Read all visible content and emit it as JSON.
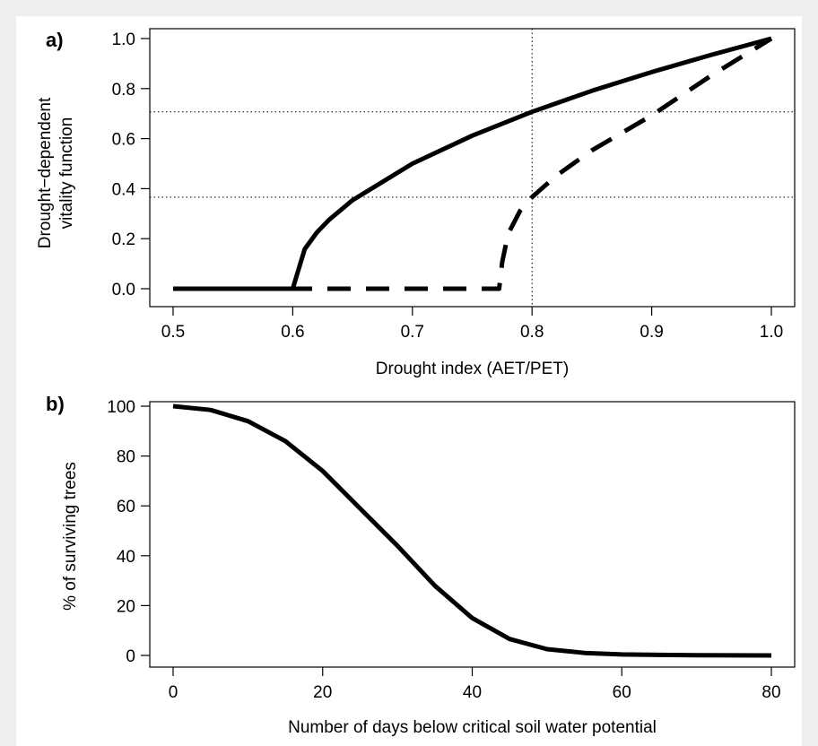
{
  "chart_data": [
    {
      "panel_label": "a)",
      "type": "line",
      "xlabel": "Drought index (AET/PET)",
      "ylabel_lines": [
        "Drought−dependent",
        "vitality function"
      ],
      "xlim": [
        0.5,
        1.0
      ],
      "ylim": [
        0.0,
        1.0
      ],
      "xticks": [
        0.5,
        0.6,
        0.7,
        0.8,
        0.9,
        1.0
      ],
      "xtick_labels": [
        "0.5",
        "0.6",
        "0.7",
        "0.8",
        "0.9",
        "1.0"
      ],
      "yticks": [
        0.0,
        0.2,
        0.4,
        0.6,
        0.8,
        1.0
      ],
      "ytick_labels": [
        "0.0",
        "0.2",
        "0.4",
        "0.6",
        "0.8",
        "1.0"
      ],
      "grid": false,
      "reference_lines": {
        "vertical_x": [
          0.8
        ],
        "horizontal_y": [
          0.707,
          0.366
        ],
        "style": "dotted"
      },
      "series": [
        {
          "style": "solid",
          "color": "#000000",
          "x": [
            0.5,
            0.6,
            0.61,
            0.62,
            0.63,
            0.65,
            0.7,
            0.75,
            0.8,
            0.85,
            0.9,
            0.95,
            1.0
          ],
          "y": [
            0.0,
            0.0,
            0.158,
            0.224,
            0.274,
            0.354,
            0.5,
            0.612,
            0.707,
            0.791,
            0.866,
            0.935,
            1.0
          ]
        },
        {
          "style": "dashed",
          "color": "#000000",
          "x": [
            0.5,
            0.7725,
            0.775,
            0.78,
            0.79,
            0.8,
            0.82,
            0.85,
            0.9,
            0.95,
            1.0
          ],
          "y": [
            0.0,
            0.0,
            0.106,
            0.219,
            0.312,
            0.366,
            0.451,
            0.553,
            0.693,
            0.853,
            1.0
          ]
        }
      ]
    },
    {
      "panel_label": "b)",
      "type": "line",
      "xlabel": "Number of days below critical soil water potential",
      "ylabel": "% of surviving trees",
      "xlim": [
        0,
        80
      ],
      "ylim": [
        0,
        100
      ],
      "xticks": [
        0,
        20,
        40,
        60,
        80
      ],
      "xtick_labels": [
        "0",
        "20",
        "40",
        "60",
        "80"
      ],
      "yticks": [
        0,
        20,
        40,
        60,
        80,
        100
      ],
      "ytick_labels": [
        "0",
        "20",
        "40",
        "60",
        "80",
        "100"
      ],
      "grid": false,
      "series": [
        {
          "style": "solid",
          "color": "#000000",
          "x": [
            0,
            5,
            10,
            15,
            20,
            25,
            30,
            35,
            40,
            45,
            50,
            55,
            60,
            65,
            70,
            75,
            80
          ],
          "y": [
            100,
            98.5,
            94,
            86,
            74,
            59,
            44,
            28,
            15,
            6.6,
            2.5,
            1.0,
            0.4,
            0.2,
            0.1,
            0.05,
            0.0
          ]
        }
      ]
    }
  ]
}
